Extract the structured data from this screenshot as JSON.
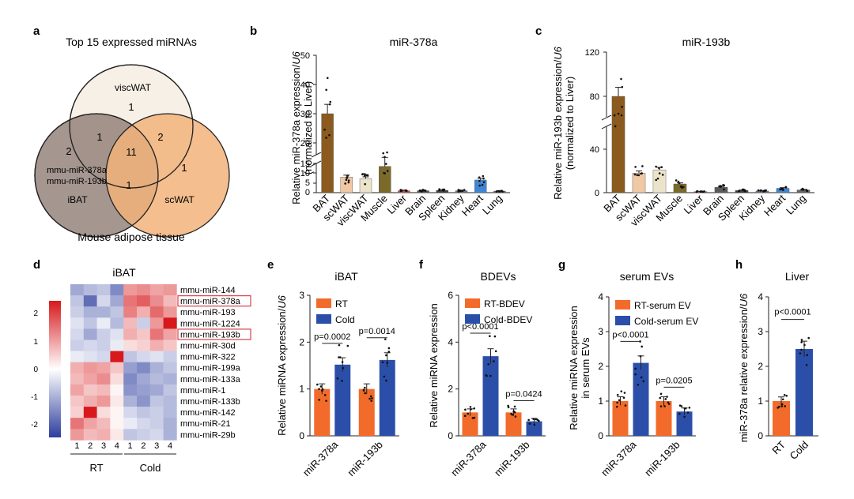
{
  "colors": {
    "orange": "#f26b2a",
    "blue": "#2b4fa9",
    "ink": "#1a1a1a",
    "red_box": "#d9404a"
  },
  "panel_letters": {
    "a": "a",
    "b": "b",
    "c": "c",
    "d": "d",
    "e": "e",
    "f": "f",
    "g": "g",
    "h": "h"
  },
  "chart_data": [
    {
      "panel": "a",
      "type": "venn",
      "title": "Top 15 expressed miRNAs",
      "caption": "Mouse adipose tissue",
      "sets": [
        {
          "name": "viscWAT",
          "only": "1",
          "color": "#f7efe6"
        },
        {
          "name": "iBAT",
          "only": "2",
          "color": "#8f7c74"
        },
        {
          "name": "scWAT",
          "only": "1",
          "color": "#f2b37a"
        }
      ],
      "overlaps": {
        "iBAT_viscWAT": "1",
        "viscWAT_scWAT": "2",
        "iBAT_scWAT": "1",
        "all": "11"
      },
      "ibat_only_members": [
        "mmu-miR-378a",
        "mmu-miR-193b"
      ]
    },
    {
      "panel": "b",
      "type": "bar",
      "title": "miR-378a",
      "ylabel_line1_prefix": "Relative miR-378a expression/",
      "ylabel_line1_italic": "U6",
      "ylabel_line2": "(normalized to Liver)",
      "categories": [
        "BAT",
        "scWAT",
        "viscWAT",
        "Muscle",
        "Liver",
        "Brain",
        "Spleen",
        "Kidney",
        "Heart",
        "Lung"
      ],
      "values": [
        30,
        8,
        7.2,
        13.5,
        1,
        1,
        1.2,
        1,
        6.5,
        0.8
      ],
      "bar_colors": [
        "#8b5a1e",
        "#f0c8a4",
        "#ece3cb",
        "#7b6a2a",
        "#c9514a",
        "#5a5a5a",
        "#3e3e3e",
        "#6f6f8e",
        "#3f86d4",
        "#666666"
      ],
      "ylim": [
        0,
        50
      ],
      "axis_break": [
        15,
        20
      ],
      "yticks": [
        "0",
        "5",
        "10",
        "15",
        "20",
        "30",
        "40",
        "50"
      ]
    },
    {
      "panel": "c",
      "type": "bar",
      "title": "miR-193b",
      "ylabel_line1_prefix": "Relative miR-193b expression/",
      "ylabel_line1_italic": "U6",
      "ylabel_line2": "(normalized to Liver)",
      "categories": [
        "BAT",
        "scWAT",
        "viscWAT",
        "Muscle",
        "Liver",
        "Brain",
        "Spleen",
        "Kidney",
        "Heart",
        "Lung"
      ],
      "values": [
        80,
        18,
        21,
        8,
        1,
        5,
        2,
        1.5,
        4,
        2.5
      ],
      "bar_colors": [
        "#8b5a1e",
        "#f0c8a4",
        "#ece3cb",
        "#7b6a2a",
        "#c9514a",
        "#5a5a5a",
        "#3e3e3e",
        "#6f6f8e",
        "#3f86d4",
        "#666666"
      ],
      "ylim": [
        0,
        120
      ],
      "axis_break": [
        50,
        60
      ],
      "yticks": [
        "0",
        "40",
        "80",
        "120"
      ]
    },
    {
      "panel": "d",
      "type": "heatmap",
      "title": "iBAT",
      "rows": [
        "mmu-miR-144",
        "mmu-miR-378a",
        "mmu-miR-193",
        "mmu-miR-1224",
        "mmu-miR-193b",
        "mmu-miR-30d",
        "mmu-miR-322",
        "mmu-miR-199a",
        "mmu-miR-133a",
        "mmu-miR-1",
        "mmu-miR-133b",
        "mmu-miR-142",
        "mmu-miR-21",
        "mmu-miR-29b"
      ],
      "highlighted_rows": [
        "mmu-miR-378a",
        "mmu-miR-193b"
      ],
      "columns": [
        "1",
        "2",
        "3",
        "4",
        "1",
        "2",
        "3",
        "4"
      ],
      "groups": [
        "RT",
        "Cold"
      ],
      "scale_ticks": [
        "2",
        "1",
        "0",
        "-1",
        "-2"
      ],
      "values": [
        [
          -0.9,
          -0.7,
          -0.6,
          -1.2,
          0.9,
          1.0,
          0.8,
          0.9
        ],
        [
          -0.6,
          -1.5,
          -0.4,
          -0.9,
          1.2,
          1.4,
          1.0,
          0.6
        ],
        [
          -0.5,
          -0.8,
          -0.8,
          -0.6,
          1.1,
          0.7,
          1.3,
          0.9
        ],
        [
          -0.3,
          -0.6,
          -0.2,
          -0.7,
          0.6,
          -0.5,
          0.9,
          2.0
        ],
        [
          -0.4,
          -0.9,
          -0.5,
          -0.3,
          0.7,
          0.5,
          1.2,
          0.8
        ],
        [
          -0.5,
          -0.4,
          -0.5,
          -0.2,
          0.3,
          0.4,
          0.7,
          0.5
        ],
        [
          -0.2,
          -0.3,
          -0.4,
          2.1,
          -0.6,
          -0.4,
          -0.3,
          -0.5
        ],
        [
          0.7,
          0.9,
          0.8,
          0.5,
          -1.0,
          -1.2,
          -0.8,
          -0.6
        ],
        [
          0.6,
          0.8,
          1.0,
          0.3,
          -1.2,
          -0.9,
          -0.7,
          -0.8
        ],
        [
          0.8,
          0.5,
          0.6,
          0.1,
          -1.1,
          -1.0,
          -0.9,
          -0.6
        ],
        [
          0.5,
          0.7,
          0.9,
          0.2,
          -0.8,
          -1.1,
          -0.6,
          -0.7
        ],
        [
          0.4,
          2.0,
          0.3,
          0.1,
          -0.4,
          -0.6,
          -0.5,
          -0.7
        ],
        [
          1.2,
          0.8,
          0.6,
          0.1,
          -0.2,
          -0.4,
          -0.5,
          -0.8
        ],
        [
          0.9,
          0.6,
          0.7,
          0.2,
          -0.6,
          -0.5,
          -0.4,
          -0.8
        ]
      ]
    },
    {
      "panel": "e",
      "type": "bar",
      "title": "iBAT",
      "ylabel_prefix": "Relative miRNA expression/",
      "ylabel_italic": "U6",
      "categories": [
        "miR-378a",
        "miR-193b"
      ],
      "series": [
        {
          "name": "RT",
          "values": [
            1.0,
            1.0
          ],
          "color": "#f26b2a"
        },
        {
          "name": "Cold",
          "values": [
            1.52,
            1.62
          ],
          "color": "#2b4fa9"
        }
      ],
      "pvalues": [
        "p=0.0002",
        "p=0.0014"
      ],
      "ylim": [
        0,
        3
      ],
      "yticks": [
        "0",
        "1",
        "2",
        "3"
      ]
    },
    {
      "panel": "f",
      "type": "bar",
      "title": "BDEVs",
      "ylabel": "Relative miRNA expression",
      "categories": [
        "miR-378a",
        "miR-193b"
      ],
      "series": [
        {
          "name": "RT-BDEV",
          "values": [
            1.0,
            1.0
          ],
          "color": "#f26b2a"
        },
        {
          "name": "Cold-BDEV",
          "values": [
            3.4,
            0.62
          ],
          "color": "#2b4fa9"
        }
      ],
      "pvalues": [
        "p<0.0001",
        "p=0.0424"
      ],
      "ylim": [
        0,
        6
      ],
      "yticks": [
        "0",
        "2",
        "4",
        "6"
      ]
    },
    {
      "panel": "g",
      "type": "bar",
      "title": "serum EVs",
      "ylabel_line1": "Relative miRNA expression",
      "ylabel_line2": "in serum EVs",
      "categories": [
        "miR-378a",
        "miR-193b"
      ],
      "series": [
        {
          "name": "RT-serum EV",
          "values": [
            1.0,
            1.0
          ],
          "color": "#f26b2a"
        },
        {
          "name": "Cold-serum EV",
          "values": [
            2.1,
            0.7
          ],
          "color": "#2b4fa9"
        }
      ],
      "pvalues": [
        "p<0.0001",
        "p=0.0205"
      ],
      "ylim": [
        0,
        4
      ],
      "yticks": [
        "0",
        "1",
        "2",
        "3",
        "4"
      ]
    },
    {
      "panel": "h",
      "type": "bar",
      "title": "Liver",
      "ylabel_prefix": "miR-378a relative expression/",
      "ylabel_italic": "U6",
      "categories": [
        "RT",
        "Cold"
      ],
      "values": [
        1.0,
        2.5
      ],
      "bar_colors": [
        "#f26b2a",
        "#2b4fa9"
      ],
      "pvalue": "p<0.0001",
      "ylim": [
        0,
        4
      ],
      "yticks": [
        "0",
        "1",
        "2",
        "3",
        "4"
      ]
    }
  ]
}
